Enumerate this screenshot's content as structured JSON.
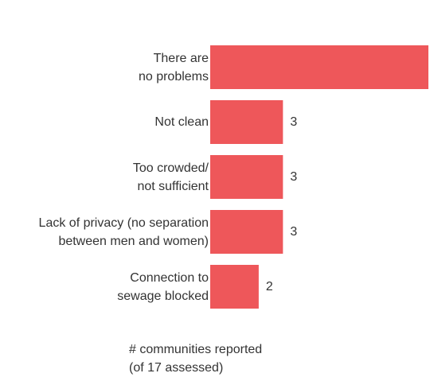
{
  "chart_data": {
    "type": "bar",
    "orientation": "horizontal",
    "categories": [
      "There are\nno problems",
      "Not clean",
      "Too crowded/\nnot sufficient",
      "Lack of privacy (no separation\nbetween men and women)",
      "Connection to\nsewage blocked"
    ],
    "values": [
      9,
      3,
      3,
      3,
      2
    ],
    "value_labels": [
      "",
      "3",
      "3",
      "3",
      "2"
    ],
    "bar_color": "#ee575a",
    "xlabel_line1": "# communities reported",
    "xlabel_line2": "(of 17 assessed)",
    "xlim": [
      0,
      9
    ],
    "grid": false,
    "legend": "none"
  }
}
